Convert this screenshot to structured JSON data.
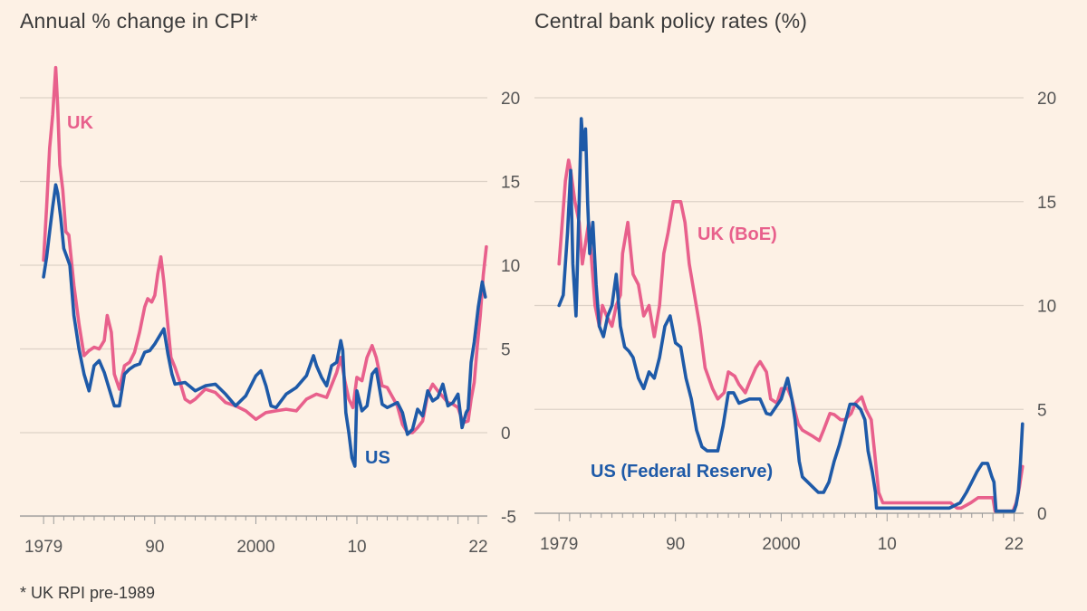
{
  "chart_data": [
    {
      "type": "line",
      "title": "Annual % change in CPI*",
      "footnote": "* UK RPI pre-1989",
      "ylim": [
        -5,
        22
      ],
      "yticks": [
        20,
        15,
        10,
        5,
        0,
        -5
      ],
      "xlim": [
        1978.9,
        2022.9
      ],
      "xtick_values": [
        1979,
        1990,
        2000,
        2010,
        2022
      ],
      "xtick_labels": [
        "1979",
        "90",
        "2000",
        "10",
        "22"
      ],
      "series": [
        {
          "name": "UK",
          "color": "#e8608c",
          "x": [
            1979.0,
            1979.3,
            1979.6,
            1979.9,
            1980.2,
            1980.4,
            1980.6,
            1980.9,
            1981.2,
            1981.5,
            1982.0,
            1982.5,
            1983.0,
            1983.5,
            1984.0,
            1984.5,
            1985.0,
            1985.3,
            1985.7,
            1986.0,
            1986.5,
            1987.0,
            1987.5,
            1988.0,
            1988.5,
            1989.0,
            1989.3,
            1989.7,
            1990.0,
            1990.3,
            1990.6,
            1990.9,
            1991.2,
            1991.6,
            1992.0,
            1992.5,
            1993.0,
            1993.5,
            1994.0,
            1995.0,
            1996.0,
            1997.0,
            1998.0,
            1999.0,
            2000.0,
            2001.0,
            2002.0,
            2003.0,
            2004.0,
            2005.0,
            2006.0,
            2007.0,
            2008.0,
            2008.4,
            2008.8,
            2009.2,
            2009.6,
            2010.0,
            2010.5,
            2011.0,
            2011.5,
            2011.9,
            2012.5,
            2013.0,
            2014.0,
            2014.5,
            2015.0,
            2015.5,
            2016.0,
            2016.5,
            2017.0,
            2017.5,
            2018.0,
            2019.0,
            2019.5,
            2020.0,
            2020.5,
            2021.0,
            2021.3,
            2021.6,
            2021.9,
            2022.2,
            2022.5,
            2022.8
          ],
          "values": [
            10.3,
            13.5,
            17.0,
            19.0,
            21.8,
            19.5,
            16.0,
            14.5,
            12.0,
            11.8,
            8.8,
            6.5,
            4.6,
            4.9,
            5.1,
            5.0,
            5.5,
            7.0,
            6.0,
            3.5,
            2.6,
            4.0,
            4.2,
            4.8,
            6.0,
            7.5,
            8.0,
            7.8,
            8.2,
            9.5,
            10.5,
            9.0,
            7.0,
            4.5,
            3.9,
            3.0,
            2.0,
            1.8,
            2.0,
            2.6,
            2.4,
            1.8,
            1.6,
            1.3,
            0.8,
            1.2,
            1.3,
            1.4,
            1.3,
            2.0,
            2.3,
            2.1,
            3.6,
            4.5,
            3.1,
            2.0,
            1.5,
            3.3,
            3.1,
            4.5,
            5.2,
            4.5,
            2.8,
            2.7,
            1.6,
            0.5,
            0.0,
            0.0,
            0.3,
            0.7,
            2.3,
            2.9,
            2.5,
            1.8,
            1.7,
            1.5,
            0.6,
            0.7,
            2.0,
            3.0,
            5.1,
            7.0,
            9.4,
            11.1
          ]
        },
        {
          "name": "US",
          "color": "#1e5aa8",
          "x": [
            1979.0,
            1979.3,
            1979.6,
            1979.9,
            1980.2,
            1980.4,
            1980.7,
            1981.0,
            1981.3,
            1981.6,
            1982.0,
            1982.5,
            1983.0,
            1983.5,
            1984.0,
            1984.5,
            1985.0,
            1986.0,
            1986.5,
            1987.0,
            1987.5,
            1988.0,
            1988.5,
            1989.0,
            1989.5,
            1990.0,
            1990.5,
            1990.9,
            1991.3,
            1991.7,
            1992.0,
            1993.0,
            1994.0,
            1995.0,
            1996.0,
            1997.0,
            1998.0,
            1999.0,
            2000.0,
            2000.5,
            2001.0,
            2001.5,
            2002.0,
            2003.0,
            2004.0,
            2005.0,
            2005.7,
            2006.0,
            2006.5,
            2007.0,
            2007.5,
            2008.0,
            2008.4,
            2008.6,
            2008.9,
            2009.2,
            2009.5,
            2009.8,
            2010.0,
            2010.5,
            2011.0,
            2011.5,
            2011.9,
            2012.5,
            2013.0,
            2014.0,
            2014.5,
            2015.0,
            2015.5,
            2016.0,
            2016.5,
            2017.0,
            2017.5,
            2018.0,
            2018.5,
            2019.0,
            2019.5,
            2020.0,
            2020.4,
            2020.8,
            2021.0,
            2021.3,
            2021.6,
            2022.0,
            2022.4,
            2022.7
          ],
          "values": [
            9.3,
            10.5,
            12.0,
            13.5,
            14.8,
            14.3,
            12.8,
            11.0,
            10.5,
            10.0,
            7.0,
            5.0,
            3.5,
            2.5,
            4.0,
            4.3,
            3.6,
            1.6,
            1.6,
            3.5,
            3.8,
            4.0,
            4.1,
            4.8,
            4.9,
            5.3,
            5.8,
            6.2,
            4.7,
            3.5,
            2.9,
            3.0,
            2.5,
            2.8,
            2.9,
            2.3,
            1.6,
            2.2,
            3.4,
            3.7,
            2.8,
            1.6,
            1.5,
            2.3,
            2.7,
            3.4,
            4.6,
            4.0,
            3.3,
            2.8,
            4.0,
            4.2,
            5.5,
            4.9,
            1.2,
            0.0,
            -1.5,
            -2.0,
            2.5,
            1.3,
            1.6,
            3.5,
            3.8,
            1.7,
            1.5,
            1.8,
            1.2,
            -0.1,
            0.2,
            1.4,
            1.0,
            2.5,
            1.9,
            2.1,
            2.9,
            1.6,
            1.8,
            2.3,
            0.3,
            1.2,
            1.4,
            4.2,
            5.4,
            7.5,
            9.0,
            8.1
          ]
        }
      ]
    },
    {
      "type": "line",
      "title": "Central bank policy rates (%)",
      "ylim": [
        0,
        20
      ],
      "yticks": [
        20,
        15,
        10,
        5,
        0
      ],
      "xlim": [
        1978.9,
        2022.9
      ],
      "xtick_values": [
        1979,
        1990,
        2000,
        2010,
        2022
      ],
      "xtick_labels": [
        "1979",
        "90",
        "2000",
        "10",
        "22"
      ],
      "series": [
        {
          "name": "UK (BoE)",
          "color": "#e8608c",
          "x": [
            1979.0,
            1979.3,
            1979.6,
            1979.9,
            1980.1,
            1980.5,
            1980.9,
            1981.2,
            1981.5,
            1981.8,
            1982.1,
            1982.4,
            1982.8,
            1983.1,
            1983.5,
            1984.0,
            1984.4,
            1984.8,
            1985.0,
            1985.5,
            1986.0,
            1986.5,
            1987.0,
            1987.5,
            1988.0,
            1988.5,
            1988.9,
            1989.3,
            1989.8,
            1990.5,
            1990.9,
            1991.3,
            1991.8,
            1992.3,
            1992.8,
            1993.5,
            1994.0,
            1994.6,
            1995.0,
            1995.6,
            1996.0,
            1996.6,
            1997.0,
            1997.6,
            1998.0,
            1998.6,
            1999.0,
            1999.6,
            2000.0,
            2000.6,
            2001.0,
            2001.6,
            2002.0,
            2003.0,
            2003.6,
            2004.0,
            2004.6,
            2005.0,
            2005.6,
            2006.0,
            2006.6,
            2007.0,
            2007.6,
            2008.0,
            2008.5,
            2008.9,
            2009.2,
            2009.6,
            2010.0,
            2015.0,
            2016.0,
            2016.6,
            2017.0,
            2017.9,
            2018.6,
            2019.0,
            2020.0,
            2020.2,
            2020.5,
            2021.0,
            2021.9,
            2022.2,
            2022.5,
            2022.8
          ],
          "values": [
            12.0,
            14.0,
            16.0,
            17.0,
            16.5,
            15.0,
            14.0,
            12.0,
            13.0,
            14.0,
            12.0,
            10.0,
            9.0,
            10.0,
            9.5,
            9.0,
            10.0,
            10.5,
            12.5,
            14.0,
            11.5,
            11.0,
            9.5,
            10.0,
            8.5,
            10.0,
            12.5,
            13.5,
            15.0,
            15.0,
            14.0,
            12.0,
            10.5,
            9.0,
            7.0,
            6.0,
            5.5,
            5.8,
            6.8,
            6.6,
            6.2,
            5.8,
            6.3,
            7.0,
            7.3,
            6.8,
            5.5,
            5.3,
            6.0,
            6.0,
            5.5,
            4.3,
            4.0,
            3.7,
            3.5,
            4.0,
            4.8,
            4.75,
            4.5,
            4.5,
            4.8,
            5.3,
            5.6,
            5.0,
            4.5,
            2.5,
            1.0,
            0.5,
            0.5,
            0.5,
            0.5,
            0.25,
            0.25,
            0.5,
            0.75,
            0.75,
            0.75,
            0.1,
            0.1,
            0.1,
            0.1,
            0.5,
            1.25,
            2.25
          ]
        },
        {
          "name": "US (Federal Reserve)",
          "color": "#1e5aa8",
          "x": [
            1979.0,
            1979.4,
            1979.8,
            1980.1,
            1980.3,
            1980.6,
            1980.9,
            1981.1,
            1981.3,
            1981.5,
            1981.7,
            1981.9,
            1982.2,
            1982.5,
            1982.8,
            1983.2,
            1983.6,
            1984.0,
            1984.4,
            1984.8,
            1985.2,
            1985.6,
            1986.0,
            1986.5,
            1987.0,
            1987.5,
            1988.0,
            1988.5,
            1989.0,
            1989.5,
            1990.0,
            1990.5,
            1991.0,
            1991.5,
            1992.0,
            1992.5,
            1993.0,
            1993.5,
            1994.0,
            1994.5,
            1995.0,
            1995.5,
            1996.0,
            1997.0,
            1998.0,
            1998.6,
            1999.0,
            1999.6,
            2000.0,
            2000.6,
            2001.0,
            2001.3,
            2001.7,
            2002.0,
            2003.0,
            2003.5,
            2004.0,
            2004.5,
            2005.0,
            2005.5,
            2006.0,
            2006.5,
            2007.0,
            2007.5,
            2007.9,
            2008.2,
            2008.6,
            2008.9,
            2009.0,
            2015.9,
            2016.9,
            2017.5,
            2018.0,
            2018.5,
            2019.0,
            2019.5,
            2019.9,
            2020.1,
            2020.3,
            2022.0,
            2022.2,
            2022.4,
            2022.6,
            2022.8
          ],
          "values": [
            10.0,
            10.5,
            13.5,
            16.5,
            12.0,
            9.5,
            15.0,
            19.0,
            17.5,
            18.5,
            15.0,
            12.5,
            14.0,
            11.0,
            9.0,
            8.5,
            9.5,
            10.0,
            11.5,
            9.0,
            8.0,
            7.8,
            7.5,
            6.5,
            6.0,
            6.8,
            6.5,
            7.5,
            9.0,
            9.5,
            8.2,
            8.0,
            6.5,
            5.5,
            4.0,
            3.2,
            3.0,
            3.0,
            3.0,
            4.2,
            5.8,
            5.8,
            5.3,
            5.5,
            5.5,
            4.8,
            4.75,
            5.2,
            5.5,
            6.5,
            5.5,
            4.5,
            2.5,
            1.75,
            1.25,
            1.0,
            1.0,
            1.5,
            2.5,
            3.3,
            4.3,
            5.25,
            5.25,
            5.0,
            4.5,
            3.0,
            2.0,
            1.0,
            0.25,
            0.25,
            0.5,
            1.0,
            1.5,
            2.0,
            2.4,
            2.4,
            1.75,
            1.5,
            0.1,
            0.1,
            0.4,
            1.0,
            2.4,
            4.3
          ]
        }
      ]
    }
  ]
}
